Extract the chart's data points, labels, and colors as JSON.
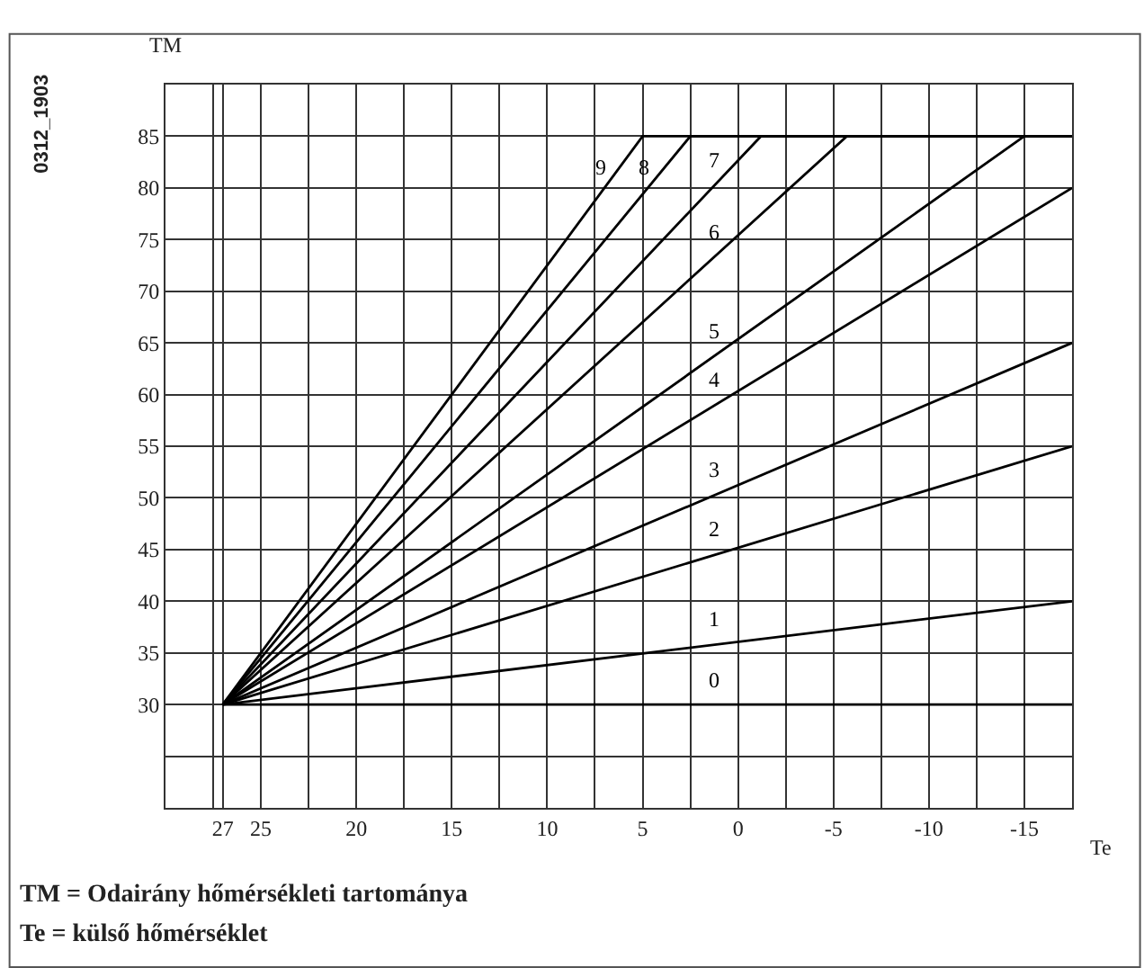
{
  "chart_data": {
    "type": "line",
    "xlabel": "Te",
    "ylabel": "TM",
    "annotations": [
      "0312_1903",
      "TM = Odairány hőmérsékleti tartománya",
      "Te = külső hőmérséklet"
    ],
    "series": [
      {
        "name": "0",
        "color": "#000000",
        "x": [
          27,
          -17.5
        ],
        "values": [
          30,
          30
        ]
      },
      {
        "name": "1",
        "color": "#000000",
        "x": [
          27,
          -17.5
        ],
        "values": [
          30,
          40
        ]
      },
      {
        "name": "2",
        "color": "#000000",
        "x": [
          27,
          -17.5
        ],
        "values": [
          30,
          55
        ]
      },
      {
        "name": "3",
        "color": "#000000",
        "x": [
          27,
          -17.5
        ],
        "values": [
          30,
          65
        ]
      },
      {
        "name": "4",
        "color": "#000000",
        "x": [
          27,
          -17.5
        ],
        "values": [
          30,
          80
        ]
      },
      {
        "name": "5",
        "color": "#000000",
        "x": [
          27,
          -15,
          -17.5
        ],
        "values": [
          30,
          85,
          85
        ]
      },
      {
        "name": "6",
        "color": "#000000",
        "x": [
          27,
          -5.7,
          -17.5
        ],
        "values": [
          30,
          85,
          85
        ]
      },
      {
        "name": "7",
        "color": "#000000",
        "x": [
          27,
          -1.2,
          -17.5
        ],
        "values": [
          30,
          85,
          85
        ]
      },
      {
        "name": "8",
        "color": "#000000",
        "x": [
          27,
          2.5,
          -17.5
        ],
        "values": [
          30,
          85,
          85
        ]
      },
      {
        "name": "9",
        "color": "#000000",
        "x": [
          27,
          5,
          -17.5
        ],
        "values": [
          30,
          85,
          85
        ]
      }
    ],
    "xlim": [
      30,
      -17.5
    ],
    "xticks": [
      {
        "value": 27.5,
        "label": null
      },
      27,
      25,
      {
        "value": 22.5,
        "label": null
      },
      20,
      {
        "value": 17.5,
        "label": null
      },
      15,
      {
        "value": 12.5,
        "label": null
      },
      10,
      {
        "value": 7.5,
        "label": null
      },
      5,
      {
        "value": 2.5,
        "label": null
      },
      0,
      {
        "value": -2.5,
        "label": null
      },
      -5,
      {
        "value": -7.5,
        "label": null
      },
      -10,
      {
        "value": -12.5,
        "label": null
      },
      -15
    ],
    "ylim": [
      20,
      90
    ],
    "yticks": [
      {
        "value": 25,
        "label": null
      },
      30,
      35,
      40,
      45,
      50,
      55,
      60,
      65,
      70,
      75,
      80,
      85
    ],
    "grid": true,
    "line_style": "solid",
    "marker": "none"
  }
}
